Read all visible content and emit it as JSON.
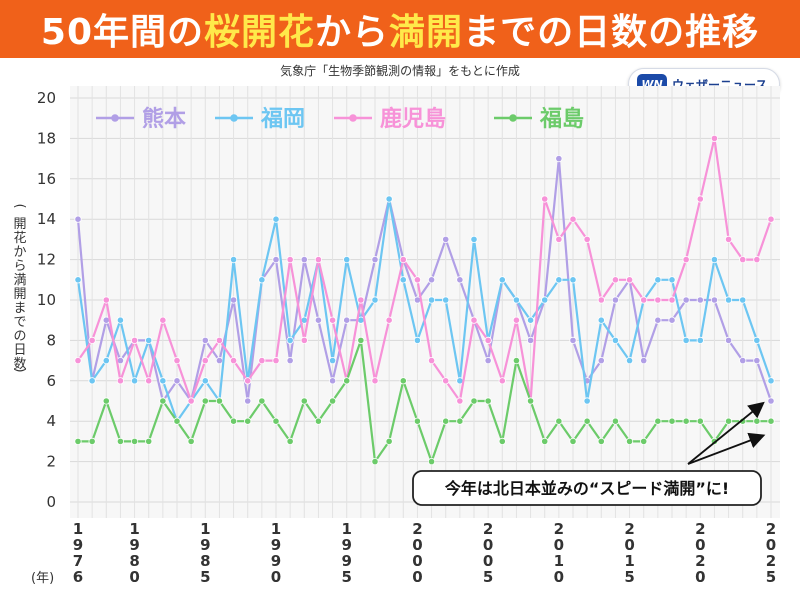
{
  "header": {
    "title_parts": [
      {
        "text": "50年間の",
        "highlight": false
      },
      {
        "text": "桜開花",
        "highlight": true
      },
      {
        "text": "から",
        "highlight": false
      },
      {
        "text": "満開",
        "highlight": true
      },
      {
        "text": "までの日数の推移",
        "highlight": false
      }
    ],
    "source_note": "気象庁「生物季節観測の情報」をもとに作成",
    "logo_mark": "WN",
    "logo_text": "ウェザーニュース"
  },
  "colors": {
    "banner": "#f0611a",
    "highlight": "#ffe94a",
    "kumamoto": "#b19fe6",
    "fukuoka": "#6dc6f2",
    "kagoshima": "#f792d8",
    "fukushima": "#6ccb6a"
  },
  "chart_data": {
    "type": "line",
    "title": "50年間の桜開花から満開までの日数の推移",
    "ylabel": "(開花から満開までの日数)",
    "xunit_label": "(年)",
    "ylim": [
      0,
      20
    ],
    "y_ticks": [
      0,
      2,
      4,
      6,
      8,
      10,
      12,
      14,
      16,
      18,
      20
    ],
    "x_tick_labels": [
      "1976",
      "1980",
      "1985",
      "1990",
      "1995",
      "2000",
      "2005",
      "2010",
      "2015",
      "2020",
      "2025"
    ],
    "grid": true,
    "legend": "top-left, horizontal",
    "annotation": "今年は北日本並みの“スピード満開”に!",
    "x": [
      1976,
      1977,
      1978,
      1979,
      1980,
      1981,
      1982,
      1983,
      1984,
      1985,
      1986,
      1987,
      1988,
      1989,
      1990,
      1991,
      1992,
      1993,
      1994,
      1995,
      1996,
      1997,
      1998,
      1999,
      2000,
      2001,
      2002,
      2003,
      2004,
      2005,
      2006,
      2007,
      2008,
      2009,
      2010,
      2011,
      2012,
      2013,
      2014,
      2015,
      2016,
      2017,
      2018,
      2019,
      2020,
      2021,
      2022,
      2023,
      2024,
      2025
    ],
    "series": [
      {
        "name": "熊本",
        "color": "#b19fe6",
        "values": [
          14,
          6,
          9,
          7,
          8,
          8,
          5,
          6,
          5,
          8,
          7,
          10,
          5,
          11,
          12,
          7,
          12,
          9,
          6,
          9,
          9,
          12,
          15,
          12,
          10,
          11,
          13,
          11,
          9,
          7,
          11,
          10,
          8,
          10,
          17,
          8,
          6,
          7,
          10,
          11,
          7,
          9,
          9,
          10,
          10,
          10,
          8,
          7,
          7,
          5
        ]
      },
      {
        "name": "福岡",
        "color": "#6dc6f2",
        "values": [
          11,
          6,
          7,
          9,
          6,
          8,
          6,
          4,
          5,
          6,
          5,
          12,
          6,
          11,
          14,
          8,
          9,
          12,
          7,
          12,
          9,
          10,
          15,
          11,
          8,
          10,
          10,
          6,
          13,
          8,
          11,
          10,
          9,
          10,
          11,
          11,
          5,
          9,
          8,
          7,
          10,
          11,
          11,
          8,
          8,
          12,
          10,
          10,
          8,
          6
        ]
      },
      {
        "name": "鹿児島",
        "color": "#f792d8",
        "values": [
          7,
          8,
          10,
          6,
          8,
          6,
          9,
          7,
          5,
          7,
          8,
          7,
          6,
          7,
          7,
          12,
          8,
          12,
          9,
          6,
          10,
          6,
          9,
          12,
          11,
          7,
          6,
          5,
          9,
          8,
          6,
          9,
          5,
          15,
          13,
          14,
          13,
          10,
          11,
          11,
          10,
          10,
          10,
          12,
          15,
          18,
          13,
          12,
          12,
          14
        ]
      },
      {
        "name": "福島",
        "color": "#6ccb6a",
        "values": [
          3,
          3,
          5,
          3,
          3,
          3,
          5,
          4,
          3,
          5,
          5,
          4,
          4,
          5,
          4,
          3,
          5,
          4,
          5,
          6,
          8,
          2,
          3,
          6,
          4,
          2,
          4,
          4,
          5,
          5,
          3,
          7,
          5,
          3,
          4,
          3,
          4,
          3,
          4,
          3,
          3,
          4,
          4,
          4,
          4,
          3,
          4,
          4,
          4,
          4
        ]
      }
    ]
  }
}
